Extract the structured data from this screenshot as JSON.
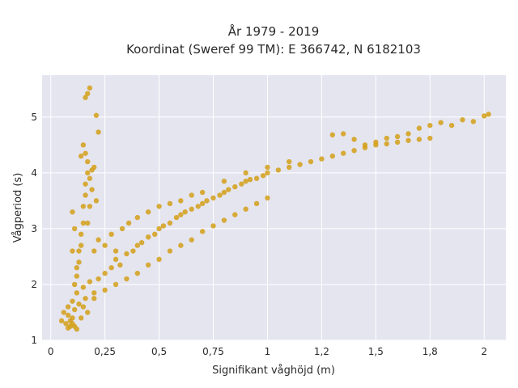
{
  "chart_data": {
    "type": "scatter",
    "title": "År 1979 - 2019",
    "subtitle": "Koordinat (Sweref 99 TM): E 366742, N 6182103",
    "xlabel": "Signifikant våghöjd (m)",
    "ylabel": "Vågperiod (s)",
    "xlim": [
      -0.04,
      2.1
    ],
    "ylim": [
      1.0,
      5.75
    ],
    "x_ticks": [
      0,
      0.25,
      0.5,
      0.75,
      1,
      1.25,
      1.5,
      1.75,
      2
    ],
    "x_tick_labels": [
      "0",
      "0,25",
      "0,5",
      "0,75",
      "1",
      "1,2",
      "1,5",
      "1,8",
      "2"
    ],
    "y_ticks": [
      1,
      2,
      3,
      4,
      5
    ],
    "y_tick_labels": [
      "1",
      "2",
      "3",
      "4",
      "5"
    ],
    "grid": true,
    "legend": "none",
    "marker_color": "#D4A017",
    "background_color": "#E5E5F0",
    "series": [
      {
        "points": [
          [
            0.05,
            1.35
          ],
          [
            0.06,
            1.5
          ],
          [
            0.07,
            1.3
          ],
          [
            0.08,
            1.45
          ],
          [
            0.08,
            1.6
          ],
          [
            0.09,
            1.25
          ],
          [
            0.1,
            1.4
          ],
          [
            0.1,
            1.7
          ],
          [
            0.11,
            1.55
          ],
          [
            0.12,
            1.2
          ],
          [
            0.12,
            1.85
          ],
          [
            0.13,
            1.65
          ],
          [
            0.14,
            1.4
          ],
          [
            0.15,
            1.95
          ],
          [
            0.16,
            1.75
          ],
          [
            0.17,
            1.5
          ],
          [
            0.18,
            2.05
          ],
          [
            0.2,
            1.85
          ],
          [
            0.22,
            2.1
          ],
          [
            0.25,
            2.2
          ],
          [
            0.28,
            2.3
          ],
          [
            0.3,
            2.45
          ],
          [
            0.32,
            2.35
          ],
          [
            0.35,
            2.55
          ],
          [
            0.38,
            2.6
          ],
          [
            0.4,
            2.7
          ],
          [
            0.42,
            2.75
          ],
          [
            0.45,
            2.85
          ],
          [
            0.48,
            2.9
          ],
          [
            0.5,
            3.0
          ],
          [
            0.52,
            3.05
          ],
          [
            0.55,
            3.1
          ],
          [
            0.58,
            3.2
          ],
          [
            0.6,
            3.25
          ],
          [
            0.62,
            3.3
          ],
          [
            0.65,
            3.35
          ],
          [
            0.68,
            3.4
          ],
          [
            0.7,
            3.45
          ],
          [
            0.72,
            3.5
          ],
          [
            0.75,
            3.55
          ],
          [
            0.78,
            3.6
          ],
          [
            0.8,
            3.65
          ],
          [
            0.82,
            3.7
          ],
          [
            0.85,
            3.75
          ],
          [
            0.88,
            3.8
          ],
          [
            0.9,
            3.85
          ],
          [
            0.92,
            3.88
          ],
          [
            0.95,
            3.9
          ],
          [
            0.98,
            3.95
          ],
          [
            1.0,
            4.0
          ],
          [
            1.05,
            4.05
          ],
          [
            1.1,
            4.1
          ],
          [
            1.15,
            4.15
          ],
          [
            1.2,
            4.2
          ],
          [
            1.25,
            4.25
          ],
          [
            1.3,
            4.3
          ],
          [
            1.35,
            4.35
          ],
          [
            1.4,
            4.4
          ],
          [
            1.45,
            4.45
          ],
          [
            1.5,
            4.5
          ],
          [
            1.55,
            4.52
          ],
          [
            1.6,
            4.55
          ],
          [
            1.65,
            4.58
          ],
          [
            1.7,
            4.6
          ],
          [
            1.75,
            4.62
          ],
          [
            0.2,
            2.6
          ],
          [
            0.22,
            2.8
          ],
          [
            0.25,
            2.7
          ],
          [
            0.28,
            2.9
          ],
          [
            0.3,
            2.6
          ],
          [
            0.33,
            3.0
          ],
          [
            0.36,
            3.1
          ],
          [
            0.4,
            3.2
          ],
          [
            0.45,
            3.3
          ],
          [
            0.5,
            3.4
          ],
          [
            0.55,
            3.45
          ],
          [
            0.6,
            3.5
          ],
          [
            0.65,
            3.6
          ],
          [
            0.7,
            3.65
          ],
          [
            0.8,
            3.85
          ],
          [
            0.9,
            4.0
          ],
          [
            1.0,
            4.1
          ],
          [
            1.1,
            4.2
          ],
          [
            0.3,
            2.0
          ],
          [
            0.35,
            2.1
          ],
          [
            0.4,
            2.2
          ],
          [
            0.45,
            2.35
          ],
          [
            0.5,
            2.45
          ],
          [
            0.55,
            2.6
          ],
          [
            0.6,
            2.7
          ],
          [
            0.65,
            2.8
          ],
          [
            0.7,
            2.95
          ],
          [
            0.75,
            3.05
          ],
          [
            0.8,
            3.15
          ],
          [
            0.85,
            3.25
          ],
          [
            0.9,
            3.35
          ],
          [
            0.95,
            3.45
          ],
          [
            1.0,
            3.55
          ],
          [
            0.25,
            1.9
          ],
          [
            0.2,
            1.75
          ],
          [
            0.15,
            1.6
          ],
          [
            0.1,
            1.3
          ],
          [
            0.09,
            1.35
          ],
          [
            0.11,
            1.25
          ],
          [
            0.08,
            1.22
          ],
          [
            0.12,
            2.3
          ],
          [
            0.13,
            2.6
          ],
          [
            0.14,
            2.9
          ],
          [
            0.15,
            3.1
          ],
          [
            0.15,
            3.4
          ],
          [
            0.16,
            3.6
          ],
          [
            0.16,
            3.8
          ],
          [
            0.17,
            4.0
          ],
          [
            0.17,
            4.2
          ],
          [
            0.16,
            4.35
          ],
          [
            0.15,
            4.5
          ],
          [
            0.14,
            4.3
          ],
          [
            0.18,
            3.9
          ],
          [
            0.19,
            3.7
          ],
          [
            0.18,
            3.4
          ],
          [
            0.17,
            3.1
          ],
          [
            0.14,
            2.7
          ],
          [
            0.13,
            2.4
          ],
          [
            0.11,
            2.0
          ],
          [
            0.12,
            2.15
          ],
          [
            0.2,
            4.1
          ],
          [
            0.19,
            4.05
          ],
          [
            0.21,
            3.5
          ],
          [
            0.16,
            5.35
          ],
          [
            0.17,
            5.42
          ],
          [
            0.18,
            5.52
          ],
          [
            0.21,
            5.03
          ],
          [
            0.22,
            4.73
          ],
          [
            0.1,
            3.3
          ],
          [
            0.11,
            3.0
          ],
          [
            0.1,
            2.6
          ],
          [
            1.55,
            4.62
          ],
          [
            1.6,
            4.65
          ],
          [
            1.65,
            4.7
          ],
          [
            1.7,
            4.8
          ],
          [
            1.75,
            4.85
          ],
          [
            1.8,
            4.9
          ],
          [
            1.85,
            4.85
          ],
          [
            1.9,
            4.95
          ],
          [
            1.95,
            4.92
          ],
          [
            2.0,
            5.02
          ],
          [
            2.02,
            5.05
          ],
          [
            1.5,
            4.55
          ],
          [
            1.45,
            4.5
          ],
          [
            1.4,
            4.6
          ],
          [
            1.35,
            4.7
          ],
          [
            1.3,
            4.68
          ]
        ]
      }
    ]
  }
}
